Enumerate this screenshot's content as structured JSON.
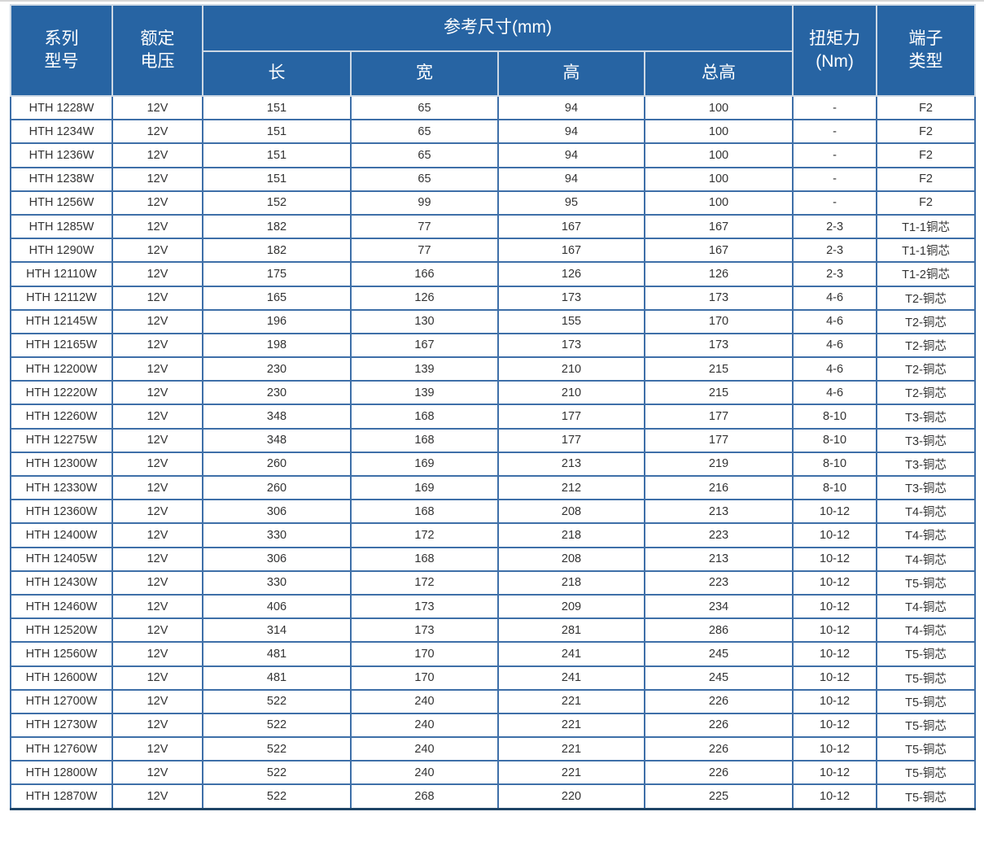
{
  "table": {
    "header": {
      "model": "系列\n型号",
      "voltage": "额定\n电压",
      "dims_group": "参考尺寸(mm)",
      "dims": [
        "长",
        "宽",
        "高",
        "总高"
      ],
      "torque": "扭矩力\n(Nm)",
      "terminal": "端子\n类型"
    },
    "rows": [
      [
        "HTH 1228W",
        "12V",
        "151",
        "65",
        "94",
        "100",
        "-",
        "F2"
      ],
      [
        "HTH 1234W",
        "12V",
        "151",
        "65",
        "94",
        "100",
        "-",
        "F2"
      ],
      [
        "HTH 1236W",
        "12V",
        "151",
        "65",
        "94",
        "100",
        "-",
        "F2"
      ],
      [
        "HTH 1238W",
        "12V",
        "151",
        "65",
        "94",
        "100",
        "-",
        "F2"
      ],
      [
        "HTH 1256W",
        "12V",
        "152",
        "99",
        "95",
        "100",
        "-",
        "F2"
      ],
      [
        "HTH 1285W",
        "12V",
        "182",
        "77",
        "167",
        "167",
        "2-3",
        "T1-1铜芯"
      ],
      [
        "HTH 1290W",
        "12V",
        "182",
        "77",
        "167",
        "167",
        "2-3",
        "T1-1铜芯"
      ],
      [
        "HTH 12110W",
        "12V",
        "175",
        "166",
        "126",
        "126",
        "2-3",
        "T1-2铜芯"
      ],
      [
        "HTH 12112W",
        "12V",
        "165",
        "126",
        "173",
        "173",
        "4-6",
        "T2-铜芯"
      ],
      [
        "HTH 12145W",
        "12V",
        "196",
        "130",
        "155",
        "170",
        "4-6",
        "T2-铜芯"
      ],
      [
        "HTH 12165W",
        "12V",
        "198",
        "167",
        "173",
        "173",
        "4-6",
        "T2-铜芯"
      ],
      [
        "HTH 12200W",
        "12V",
        "230",
        "139",
        "210",
        "215",
        "4-6",
        "T2-铜芯"
      ],
      [
        "HTH 12220W",
        "12V",
        "230",
        "139",
        "210",
        "215",
        "4-6",
        "T2-铜芯"
      ],
      [
        "HTH 12260W",
        "12V",
        "348",
        "168",
        "177",
        "177",
        "8-10",
        "T3-铜芯"
      ],
      [
        "HTH 12275W",
        "12V",
        "348",
        "168",
        "177",
        "177",
        "8-10",
        "T3-铜芯"
      ],
      [
        "HTH 12300W",
        "12V",
        "260",
        "169",
        "213",
        "219",
        "8-10",
        "T3-铜芯"
      ],
      [
        "HTH 12330W",
        "12V",
        "260",
        "169",
        "212",
        "216",
        "8-10",
        "T3-铜芯"
      ],
      [
        "HTH 12360W",
        "12V",
        "306",
        "168",
        "208",
        "213",
        "10-12",
        "T4-铜芯"
      ],
      [
        "HTH 12400W",
        "12V",
        "330",
        "172",
        "218",
        "223",
        "10-12",
        "T4-铜芯"
      ],
      [
        "HTH 12405W",
        "12V",
        "306",
        "168",
        "208",
        "213",
        "10-12",
        "T4-铜芯"
      ],
      [
        "HTH 12430W",
        "12V",
        "330",
        "172",
        "218",
        "223",
        "10-12",
        "T5-铜芯"
      ],
      [
        "HTH 12460W",
        "12V",
        "406",
        "173",
        "209",
        "234",
        "10-12",
        "T4-铜芯"
      ],
      [
        "HTH 12520W",
        "12V",
        "314",
        "173",
        "281",
        "286",
        "10-12",
        "T4-铜芯"
      ],
      [
        "HTH 12560W",
        "12V",
        "481",
        "170",
        "241",
        "245",
        "10-12",
        "T5-铜芯"
      ],
      [
        "HTH 12600W",
        "12V",
        "481",
        "170",
        "241",
        "245",
        "10-12",
        "T5-铜芯"
      ],
      [
        "HTH 12700W",
        "12V",
        "522",
        "240",
        "221",
        "226",
        "10-12",
        "T5-铜芯"
      ],
      [
        "HTH 12730W",
        "12V",
        "522",
        "240",
        "221",
        "226",
        "10-12",
        "T5-铜芯"
      ],
      [
        "HTH 12760W",
        "12V",
        "522",
        "240",
        "221",
        "226",
        "10-12",
        "T5-铜芯"
      ],
      [
        "HTH 12800W",
        "12V",
        "522",
        "240",
        "221",
        "226",
        "10-12",
        "T5-铜芯"
      ],
      [
        "HTH 12870W",
        "12V",
        "522",
        "268",
        "220",
        "225",
        "10-12",
        "T5-铜芯"
      ]
    ]
  },
  "colors": {
    "header_bg": "#2764a3",
    "header_text": "#ffffff",
    "cell_border": "#3e6fa8",
    "header_divider": "#cdd8e4",
    "bottom_border": "#1e4466",
    "cell_text": "#333333"
  }
}
